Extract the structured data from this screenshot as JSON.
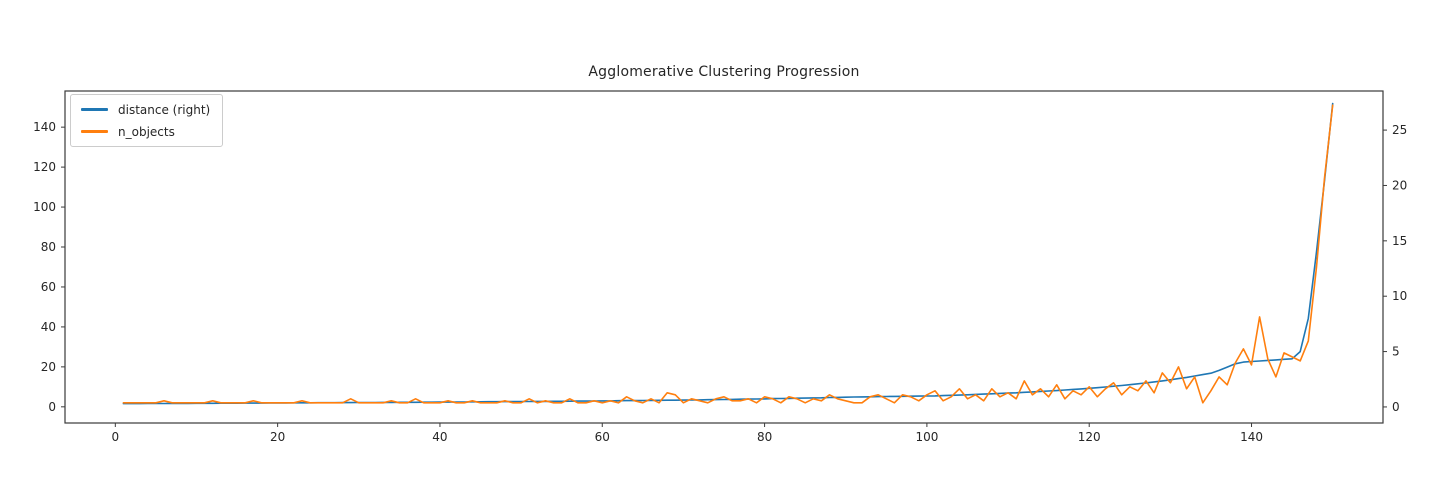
{
  "figure": {
    "background": "#ffffff",
    "text_color": "#262626",
    "spine_color": "#3a3a3a"
  },
  "chart_data": {
    "type": "line",
    "title": "Agglomerative Clustering Progression",
    "xlabel": "",
    "ylabel_left": "",
    "ylabel_right": "",
    "grid": false,
    "legend_position": "upper left",
    "x_start": 1,
    "x_step": 1,
    "xlim": [
      -6.2,
      156.2
    ],
    "ylim_left": [
      -8.1,
      158.1
    ],
    "ylim_right": [
      -1.45,
      28.53
    ],
    "xticks": [
      0,
      20,
      40,
      60,
      80,
      100,
      120,
      140
    ],
    "yticks_left": [
      0,
      20,
      40,
      60,
      80,
      100,
      120,
      140
    ],
    "yticks_right": [
      0,
      5,
      10,
      15,
      20,
      25
    ],
    "series": [
      {
        "name": "distance (right)",
        "axis": "right",
        "color": "#1f77b4",
        "values": [
          0.3,
          0.3,
          0.3,
          0.31,
          0.31,
          0.31,
          0.32,
          0.32,
          0.32,
          0.33,
          0.33,
          0.33,
          0.34,
          0.34,
          0.34,
          0.35,
          0.35,
          0.35,
          0.36,
          0.36,
          0.36,
          0.37,
          0.37,
          0.37,
          0.38,
          0.38,
          0.38,
          0.39,
          0.39,
          0.4,
          0.4,
          0.4,
          0.41,
          0.41,
          0.42,
          0.42,
          0.42,
          0.43,
          0.43,
          0.44,
          0.44,
          0.45,
          0.45,
          0.46,
          0.46,
          0.47,
          0.47,
          0.48,
          0.48,
          0.49,
          0.49,
          0.5,
          0.5,
          0.51,
          0.51,
          0.52,
          0.53,
          0.53,
          0.54,
          0.55,
          0.55,
          0.56,
          0.57,
          0.57,
          0.58,
          0.59,
          0.6,
          0.61,
          0.61,
          0.62,
          0.63,
          0.64,
          0.65,
          0.66,
          0.67,
          0.68,
          0.7,
          0.71,
          0.72,
          0.73,
          0.75,
          0.76,
          0.77,
          0.79,
          0.8,
          0.82,
          0.83,
          0.85,
          0.86,
          0.88,
          0.9,
          0.91,
          0.92,
          0.93,
          0.94,
          0.95,
          0.96,
          0.97,
          0.98,
          0.99,
          1.0,
          1.02,
          1.05,
          1.07,
          1.1,
          1.13,
          1.16,
          1.19,
          1.22,
          1.25,
          1.28,
          1.32,
          1.36,
          1.4,
          1.44,
          1.48,
          1.53,
          1.58,
          1.63,
          1.68,
          1.74,
          1.8,
          1.87,
          1.94,
          2.01,
          2.09,
          2.17,
          2.26,
          2.35,
          2.45,
          2.56,
          2.67,
          2.79,
          2.92,
          3.05,
          3.3,
          3.6,
          3.9,
          4.05,
          4.1,
          4.15,
          4.2,
          4.25,
          4.3,
          4.35,
          5.0,
          8.0,
          14.0,
          20.5,
          27.4
        ]
      },
      {
        "name": "n_objects",
        "axis": "left",
        "color": "#ff7f0e",
        "values": [
          2,
          2,
          2,
          2,
          2,
          3,
          2,
          2,
          2,
          2,
          2,
          3,
          2,
          2,
          2,
          2,
          3,
          2,
          2,
          2,
          2,
          2,
          3,
          2,
          2,
          2,
          2,
          2,
          4,
          2,
          2,
          2,
          2,
          3,
          2,
          2,
          4,
          2,
          2,
          2,
          3,
          2,
          2,
          3,
          2,
          2,
          2,
          3,
          2,
          2,
          4,
          2,
          3,
          2,
          2,
          4,
          2,
          2,
          3,
          2,
          3,
          2,
          5,
          3,
          2,
          4,
          2,
          7,
          6,
          2,
          4,
          3,
          2,
          4,
          5,
          3,
          3,
          4,
          2,
          5,
          4,
          2,
          5,
          4,
          2,
          4,
          3,
          6,
          4,
          3,
          2,
          2,
          5,
          6,
          4,
          2,
          6,
          5,
          3,
          6,
          8,
          3,
          5,
          9,
          4,
          6,
          3,
          9,
          5,
          7,
          4,
          13,
          6,
          9,
          5,
          11,
          4,
          8,
          6,
          10,
          5,
          9,
          12,
          6,
          10,
          8,
          13,
          7,
          17,
          12,
          20,
          9,
          15,
          2,
          8,
          15,
          11,
          22,
          29,
          21,
          45,
          24,
          15,
          27,
          25,
          23,
          33,
          70,
          115,
          151
        ]
      }
    ]
  },
  "legend": {
    "items": [
      {
        "label": "distance (right)"
      },
      {
        "label": "n_objects"
      }
    ]
  }
}
